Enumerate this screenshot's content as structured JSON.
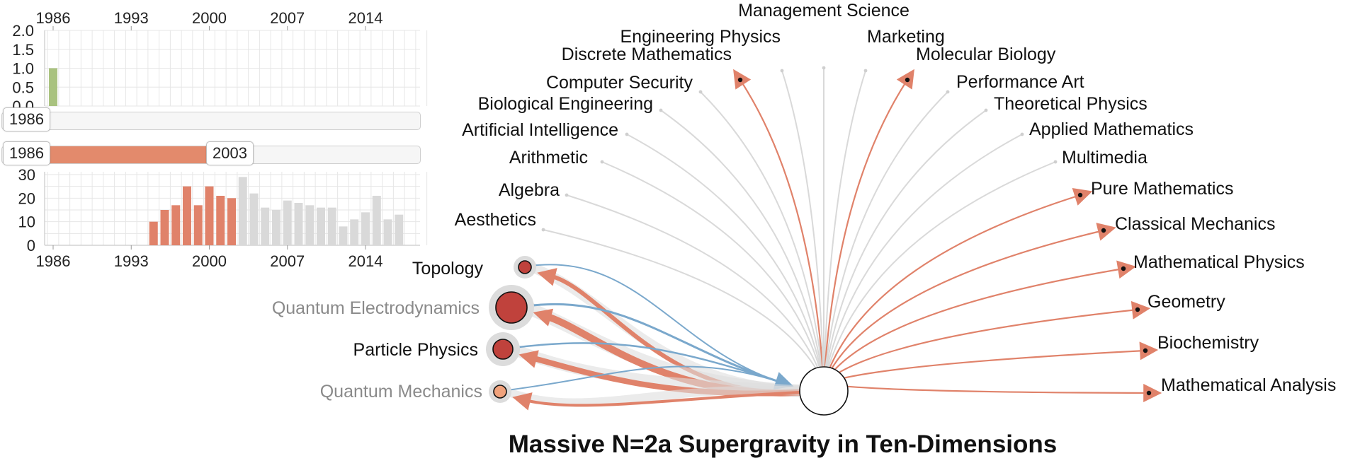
{
  "colors": {
    "accent_orange": "#e0826a",
    "accent_blue": "#7aa8cc",
    "ghost_gray": "#d9d9d9",
    "green_bar": "#a9c27f",
    "node_dark_red": "#c0423c",
    "node_light_orange": "#f0a27c"
  },
  "top_axis_years": [
    "1986",
    "1993",
    "2000",
    "2007",
    "2014"
  ],
  "top_chart": {
    "y_ticks": [
      "2.0",
      "1.5",
      "1.0",
      "0.5",
      "0.0"
    ],
    "ylim": [
      0,
      2
    ],
    "first_year": 1986,
    "last_year": 2019,
    "values": [
      {
        "year": 1986,
        "value": 1
      }
    ]
  },
  "slider_single": {
    "label": "1986"
  },
  "slider_range": {
    "start_label": "1986",
    "end_label": "2003"
  },
  "bottom_chart": {
    "y_ticks": [
      "30",
      "20",
      "10",
      "0"
    ],
    "ylim": [
      0,
      30
    ],
    "x_ticks": [
      "1986",
      "1993",
      "2000",
      "2007",
      "2014"
    ],
    "selected_range": [
      1986,
      2003
    ],
    "values": [
      {
        "year": 1995,
        "value": 10
      },
      {
        "year": 1996,
        "value": 15
      },
      {
        "year": 1997,
        "value": 17
      },
      {
        "year": 1998,
        "value": 25
      },
      {
        "year": 1999,
        "value": 17
      },
      {
        "year": 2000,
        "value": 25
      },
      {
        "year": 2001,
        "value": 21
      },
      {
        "year": 2002,
        "value": 20
      },
      {
        "year": 2003,
        "value": 29
      },
      {
        "year": 2004,
        "value": 22
      },
      {
        "year": 2005,
        "value": 16
      },
      {
        "year": 2006,
        "value": 15
      },
      {
        "year": 2007,
        "value": 19
      },
      {
        "year": 2008,
        "value": 18
      },
      {
        "year": 2009,
        "value": 17
      },
      {
        "year": 2010,
        "value": 16
      },
      {
        "year": 2011,
        "value": 16
      },
      {
        "year": 2012,
        "value": 8
      },
      {
        "year": 2013,
        "value": 11
      },
      {
        "year": 2014,
        "value": 14
      },
      {
        "year": 2015,
        "value": 21
      },
      {
        "year": 2016,
        "value": 11
      },
      {
        "year": 2017,
        "value": 13
      }
    ]
  },
  "center": {
    "title": "Massive N=2a Supergravity in Ten-Dimensions"
  },
  "left_topics": [
    {
      "label": "Topology",
      "emphasis": "normal"
    },
    {
      "label": "Quantum Electrodynamics",
      "emphasis": "muted"
    },
    {
      "label": "Particle Physics",
      "emphasis": "normal"
    },
    {
      "label": "Quantum Mechanics",
      "emphasis": "muted"
    }
  ],
  "fan_topics": [
    {
      "label": "Aesthetics",
      "state": "inactive"
    },
    {
      "label": "Algebra",
      "state": "inactive"
    },
    {
      "label": "Arithmetic",
      "state": "inactive"
    },
    {
      "label": "Artificial Intelligence",
      "state": "inactive"
    },
    {
      "label": "Biological Engineering",
      "state": "inactive"
    },
    {
      "label": "Computer Security",
      "state": "inactive"
    },
    {
      "label": "Discrete Mathematics",
      "state": "active"
    },
    {
      "label": "Engineering Physics",
      "state": "inactive"
    },
    {
      "label": "Management Science",
      "state": "inactive"
    },
    {
      "label": "Marketing",
      "state": "inactive"
    },
    {
      "label": "Molecular Biology",
      "state": "active"
    },
    {
      "label": "Performance Art",
      "state": "inactive"
    },
    {
      "label": "Theoretical Physics",
      "state": "inactive"
    },
    {
      "label": "Applied Mathematics",
      "state": "inactive"
    },
    {
      "label": "Multimedia",
      "state": "inactive"
    },
    {
      "label": "Pure Mathematics",
      "state": "active"
    },
    {
      "label": "Classical Mechanics",
      "state": "active"
    },
    {
      "label": "Mathematical Physics",
      "state": "active"
    },
    {
      "label": "Geometry",
      "state": "active"
    },
    {
      "label": "Biochemistry",
      "state": "active"
    },
    {
      "label": "Mathematical Analysis",
      "state": "active"
    }
  ]
}
